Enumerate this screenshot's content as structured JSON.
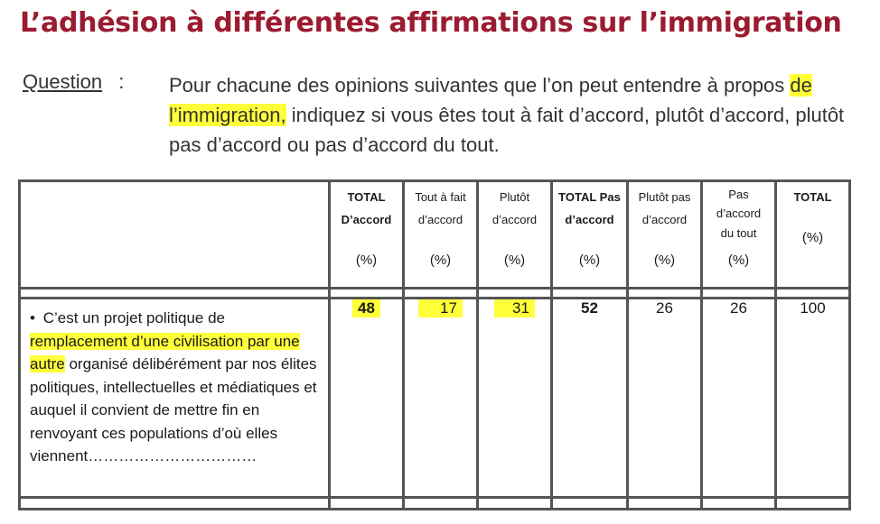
{
  "title": "L’adhésion à différentes affirmations sur l’immigration",
  "question": {
    "label": "Question",
    "separator": ":",
    "text_part1": "Pour chacune des opinions suivantes que l’on peut entendre à propos",
    "text_highlight": "de l’immigration,",
    "text_part2": " indiquez si vous êtes tout à fait d’accord, plutôt d’accord, plutôt pas d’accord ou pas d’accord du tout."
  },
  "table": {
    "columns": [
      {
        "line1": "TOTAL",
        "line2": "D’accord",
        "line3": "",
        "unit": "(%)",
        "bold": true
      },
      {
        "line1": "Tout à fait",
        "line2": "d’accord",
        "line3": "",
        "unit": "(%)",
        "bold": false
      },
      {
        "line1": "Plutôt",
        "line2": "d’accord",
        "line3": "",
        "unit": "(%)",
        "bold": false
      },
      {
        "line1": "TOTAL Pas",
        "line2": "d’accord",
        "line3": "",
        "unit": "(%)",
        "bold": true
      },
      {
        "line1": "Plutôt pas",
        "line2": "d’accord",
        "line3": "",
        "unit": "(%)",
        "bold": false
      },
      {
        "line1": "Pas",
        "line2": "d’accord",
        "line3": "du tout",
        "unit": "(%)",
        "bold": false
      },
      {
        "line1": "TOTAL",
        "line2": "",
        "line3": "",
        "unit": "(%)",
        "bold": true
      }
    ],
    "row": {
      "bullet": "•",
      "statement_part1": "C’est un projet politique de",
      "statement_highlight": "remplacement d’une civilisation par une autre",
      "statement_part2": " organisé délibérément par nos élites politiques, intellectuelles et médiatiques et auquel il convient de mettre fin en renvoyant ces populations d’où elles viennent……………………………",
      "values": [
        "48",
        "17",
        "31",
        "52",
        "26",
        "26",
        "100"
      ]
    }
  },
  "colors": {
    "title": "#9b1b30",
    "highlight": "#ffff3a",
    "border": "#555555"
  }
}
